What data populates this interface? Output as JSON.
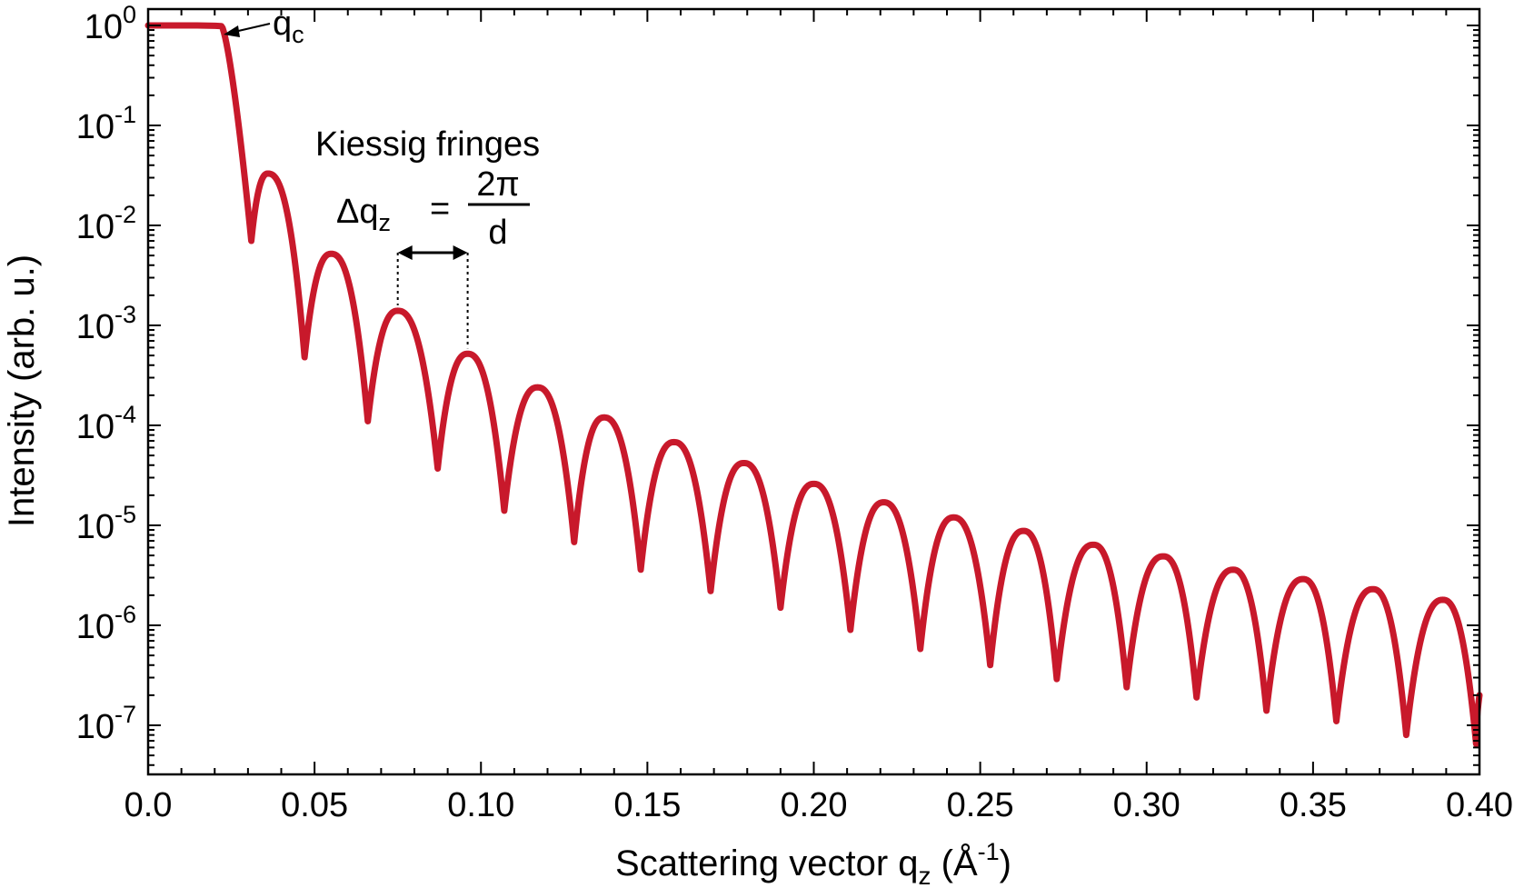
{
  "chart_data": {
    "type": "line",
    "title": "",
    "xlabel": "Scattering vector q",
    "xlabel_sub": "z",
    "xlabel_unit_open": " (Å",
    "xlabel_unit_exp": "-1",
    "xlabel_unit_close": ")",
    "ylabel": "Intensity (arb. u.)",
    "xlim": [
      0.0,
      0.4
    ],
    "ylim": [
      1e-07,
      1
    ],
    "yscale": "log",
    "grid": false,
    "x_ticks": [
      "0.0",
      "0.05",
      "0.10",
      "0.15",
      "0.20",
      "0.25",
      "0.30",
      "0.35",
      "0.40"
    ],
    "y_ticks": [
      {
        "base": "10",
        "exp": "0"
      },
      {
        "base": "10",
        "exp": "-1"
      },
      {
        "base": "10",
        "exp": "-2"
      },
      {
        "base": "10",
        "exp": "-3"
      },
      {
        "base": "10",
        "exp": "-4"
      },
      {
        "base": "10",
        "exp": "-5"
      },
      {
        "base": "10",
        "exp": "-6"
      },
      {
        "base": "10",
        "exp": "-7"
      }
    ],
    "line_color": "#c8192b",
    "critical_q": 0.022,
    "plateau_intensity": 1.0,
    "maxima": [
      {
        "q": 0.036,
        "I": 0.033
      },
      {
        "q": 0.055,
        "I": 0.0052
      },
      {
        "q": 0.075,
        "I": 0.0014
      },
      {
        "q": 0.096,
        "I": 0.00052
      },
      {
        "q": 0.117,
        "I": 0.00024
      },
      {
        "q": 0.137,
        "I": 0.00012
      },
      {
        "q": 0.158,
        "I": 6.8e-05
      },
      {
        "q": 0.179,
        "I": 4.2e-05
      },
      {
        "q": 0.2,
        "I": 2.6e-05
      },
      {
        "q": 0.221,
        "I": 1.7e-05
      },
      {
        "q": 0.242,
        "I": 1.2e-05
      },
      {
        "q": 0.263,
        "I": 8.8e-06
      },
      {
        "q": 0.284,
        "I": 6.4e-06
      },
      {
        "q": 0.305,
        "I": 4.9e-06
      },
      {
        "q": 0.326,
        "I": 3.6e-06
      },
      {
        "q": 0.347,
        "I": 2.9e-06
      },
      {
        "q": 0.368,
        "I": 2.3e-06
      },
      {
        "q": 0.389,
        "I": 1.8e-06
      }
    ],
    "minima": [
      {
        "q": 0.031,
        "I": 0.007
      },
      {
        "q": 0.047,
        "I": 0.00048
      },
      {
        "q": 0.066,
        "I": 0.00011
      },
      {
        "q": 0.087,
        "I": 3.7e-05
      },
      {
        "q": 0.107,
        "I": 1.4e-05
      },
      {
        "q": 0.128,
        "I": 6.8e-06
      },
      {
        "q": 0.148,
        "I": 3.6e-06
      },
      {
        "q": 0.169,
        "I": 2.2e-06
      },
      {
        "q": 0.19,
        "I": 1.5e-06
      },
      {
        "q": 0.211,
        "I": 9e-07
      },
      {
        "q": 0.232,
        "I": 5.8e-07
      },
      {
        "q": 0.253,
        "I": 4e-07
      },
      {
        "q": 0.273,
        "I": 2.9e-07
      },
      {
        "q": 0.294,
        "I": 2.4e-07
      },
      {
        "q": 0.315,
        "I": 1.9e-07
      },
      {
        "q": 0.336,
        "I": 1.4e-07
      },
      {
        "q": 0.357,
        "I": 1.1e-07
      },
      {
        "q": 0.378,
        "I": 8e-08
      },
      {
        "q": 0.399,
        "I": 6.5e-08
      }
    ],
    "end_point": {
      "q": 0.4,
      "I": 2e-07
    },
    "annotations": {
      "qc": {
        "main": "q",
        "sub": "c"
      },
      "kiessig": "Kiessig fringes",
      "formula": {
        "delta": "Δq",
        "delta_sub": "z",
        "equals": "=",
        "numerator": "2π",
        "denominator": "d"
      },
      "fringe_spacing_from": 0.075,
      "fringe_spacing_to": 0.096
    }
  }
}
